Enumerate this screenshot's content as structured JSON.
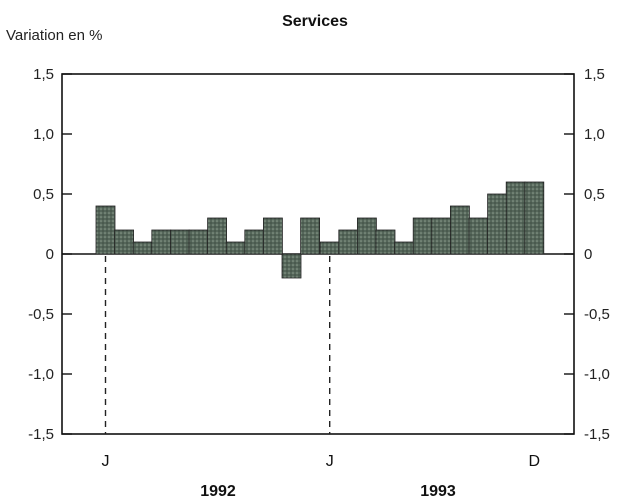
{
  "chart_data": {
    "type": "bar",
    "title": "Services",
    "ylabel": "Variation en %",
    "ylim": [
      -1.5,
      1.5
    ],
    "yticks": [
      "1,5",
      "1,0",
      "0,5",
      "0",
      "-0,5",
      "-1,0",
      "-1,5"
    ],
    "ytick_values": [
      1.5,
      1.0,
      0.5,
      0,
      -0.5,
      -1.0,
      -1.5
    ],
    "month_labels": [
      {
        "label": "J",
        "index": 0
      },
      {
        "label": "J",
        "index": 12
      },
      {
        "label": "D",
        "index": 23
      }
    ],
    "year_labels": [
      "1992",
      "1993"
    ],
    "values": [
      0.4,
      0.2,
      0.1,
      0.2,
      0.2,
      0.2,
      0.3,
      0.1,
      0.2,
      0.3,
      -0.2,
      0.3,
      0.1,
      0.2,
      0.3,
      0.2,
      0.1,
      0.3,
      0.3,
      0.4,
      0.3,
      0.5,
      0.6,
      0.6
    ],
    "colors": {
      "bar": "#4f6050",
      "bar_light": "#8a9a8a",
      "axis": "#111111"
    }
  }
}
